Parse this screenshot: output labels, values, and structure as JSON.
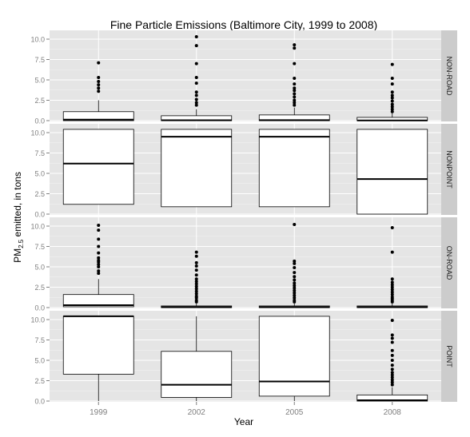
{
  "chart_data": {
    "type": "box",
    "title": "Fine Particle Emissions (Baltimore City, 1999 to 2008)",
    "xlabel": "Year",
    "ylabel": {
      "prefix": "PM",
      "subscript": "2.5",
      "suffix": " emitted, in tons"
    },
    "categories": [
      "1999",
      "2002",
      "2005",
      "2008"
    ],
    "ylim": [
      0,
      10
    ],
    "yticks": [
      "0.0",
      "2.5",
      "5.0",
      "7.5",
      "10.0"
    ],
    "colors": {
      "panel_bg": "#e5e5e5",
      "grid": "#ffffff",
      "strip_bg": "#cccccc",
      "box_fill": "#ffffff",
      "box_line": "#000000"
    },
    "panels": [
      {
        "name": "NON-ROAD",
        "boxes": [
          {
            "q1": 0.0,
            "median": 0.12,
            "q3": 1.1,
            "whisker_high": 2.5,
            "outliers": [
              3.6,
              4.0,
              4.4,
              4.8,
              5.3,
              7.1
            ]
          },
          {
            "q1": 0.0,
            "median": 0.05,
            "q3": 0.6,
            "whisker_high": 1.4,
            "outliers": [
              1.9,
              2.2,
              2.6,
              3.1,
              3.5,
              4.6,
              5.3,
              7.0,
              9.2,
              10.3
            ]
          },
          {
            "q1": 0.0,
            "median": 0.06,
            "q3": 0.7,
            "whisker_high": 1.6,
            "outliers": [
              1.9,
              2.2,
              2.5,
              2.9,
              3.3,
              3.7,
              4.0,
              4.5,
              5.2,
              7.0,
              8.9,
              9.3
            ]
          },
          {
            "q1": 0.0,
            "median": 0.03,
            "q3": 0.4,
            "whisker_high": 0.9,
            "outliers": [
              1.1,
              1.4,
              1.7,
              2.0,
              2.4,
              2.8,
              3.1,
              3.5,
              4.5,
              5.2,
              6.9
            ]
          }
        ]
      },
      {
        "name": "NONPOINT",
        "boxes": [
          {
            "q1": 1.2,
            "median": 6.2,
            "q3": 10.4,
            "whisker_high": 10.4,
            "outliers": []
          },
          {
            "q1": 0.9,
            "median": 9.5,
            "q3": 10.4,
            "whisker_high": 10.4,
            "outliers": []
          },
          {
            "q1": 0.9,
            "median": 9.5,
            "q3": 10.4,
            "whisker_high": 10.4,
            "outliers": []
          },
          {
            "q1": 0.0,
            "median": 4.3,
            "q3": 10.4,
            "whisker_high": 10.4,
            "outliers": []
          }
        ]
      },
      {
        "name": "ON-ROAD",
        "boxes": [
          {
            "q1": 0.1,
            "median": 0.3,
            "q3": 1.6,
            "whisker_high": 3.5,
            "outliers": [
              4.2,
              4.5,
              5.0,
              5.3,
              5.6,
              5.8,
              6.1,
              6.7,
              7.5,
              8.4,
              9.5,
              10.1
            ]
          },
          {
            "q1": 0.0,
            "median": 0.06,
            "q3": 0.2,
            "whisker_high": 0.5,
            "outliers": [
              0.7,
              0.9,
              1.2,
              1.4,
              1.7,
              2.0,
              2.3,
              2.6,
              2.9,
              3.2,
              3.5,
              4.0,
              4.6,
              5.1,
              5.5,
              6.3,
              6.8
            ]
          },
          {
            "q1": 0.0,
            "median": 0.06,
            "q3": 0.2,
            "whisker_high": 0.5,
            "outliers": [
              0.7,
              0.9,
              1.2,
              1.5,
              1.8,
              2.1,
              2.4,
              2.7,
              3.0,
              3.4,
              3.8,
              4.3,
              4.9,
              5.4,
              5.7,
              10.2
            ]
          },
          {
            "q1": 0.0,
            "median": 0.06,
            "q3": 0.2,
            "whisker_high": 0.5,
            "outliers": [
              0.7,
              0.9,
              1.1,
              1.3,
              1.6,
              1.9,
              2.2,
              2.5,
              2.8,
              3.1,
              3.5,
              6.8,
              9.8
            ]
          }
        ]
      },
      {
        "name": "POINT",
        "boxes": [
          {
            "q1": 3.3,
            "median": 10.4,
            "q3": 10.4,
            "whisker_low": 0.0,
            "whisker_high": 10.4,
            "outliers": []
          },
          {
            "q1": 0.45,
            "median": 2.0,
            "q3": 6.1,
            "whisker_low": 0.0,
            "whisker_high": 10.4,
            "outliers": []
          },
          {
            "q1": 0.6,
            "median": 2.4,
            "q3": 10.4,
            "whisker_low": 0.0,
            "whisker_high": 10.4,
            "outliers": []
          },
          {
            "q1": 0.0,
            "median": 0.1,
            "q3": 0.75,
            "whisker_low": 0.0,
            "whisker_high": 1.7,
            "outliers": [
              2.0,
              2.3,
              2.6,
              2.9,
              3.2,
              3.5,
              3.9,
              4.4,
              5.0,
              5.6,
              6.2,
              7.2,
              7.7,
              8.1,
              9.9
            ]
          }
        ]
      }
    ]
  }
}
